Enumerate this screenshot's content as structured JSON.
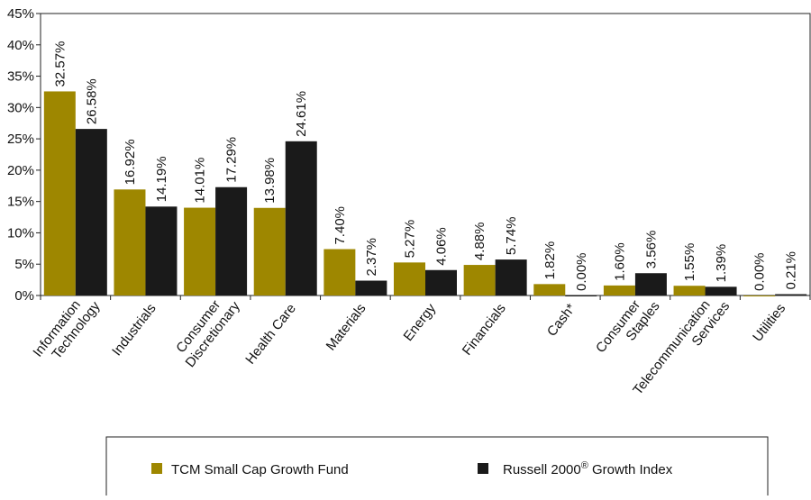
{
  "chart_data": {
    "type": "bar",
    "categories": [
      "Information\nTechnology",
      "Industrials",
      "Consumer\nDiscretionary",
      "Health Care",
      "Materials",
      "Energy",
      "Financials",
      "Cash*",
      "Consumer\nStaples",
      "Telecommunication\nServices",
      "Utilities"
    ],
    "series": [
      {
        "name": "TCM Small Cap Growth Fund",
        "color": "#9e8700",
        "values": [
          32.57,
          16.92,
          14.01,
          13.98,
          7.4,
          5.27,
          4.88,
          1.82,
          1.6,
          1.55,
          0.0
        ],
        "value_labels": [
          "32.57%",
          "16.92%",
          "14.01%",
          "13.98%",
          "7.40%",
          "5.27%",
          "4.88%",
          "1.82%",
          "1.60%",
          "1.55%",
          "0.00%"
        ]
      },
      {
        "name": "Russell 2000® Growth Index",
        "color": "#1a1a1a",
        "values": [
          26.58,
          14.19,
          17.29,
          24.61,
          2.37,
          4.06,
          5.74,
          0.0,
          3.56,
          1.39,
          0.21
        ],
        "value_labels": [
          "26.58%",
          "14.19%",
          "17.29%",
          "24.61%",
          "2.37%",
          "4.06%",
          "5.74%",
          "0.00%",
          "3.56%",
          "1.39%",
          "0.21%"
        ]
      }
    ],
    "ylim": [
      0,
      45
    ],
    "yticks": [
      {
        "value": 0,
        "label": "0%"
      },
      {
        "value": 5,
        "label": "5%"
      },
      {
        "value": 10,
        "label": "10%"
      },
      {
        "value": 15,
        "label": "15%"
      },
      {
        "value": 20,
        "label": "20%"
      },
      {
        "value": 25,
        "label": "25%"
      },
      {
        "value": 30,
        "label": "30%"
      },
      {
        "value": 35,
        "label": "35%"
      },
      {
        "value": 40,
        "label": "40%"
      },
      {
        "value": 45,
        "label": "45%"
      }
    ],
    "grid": false
  }
}
